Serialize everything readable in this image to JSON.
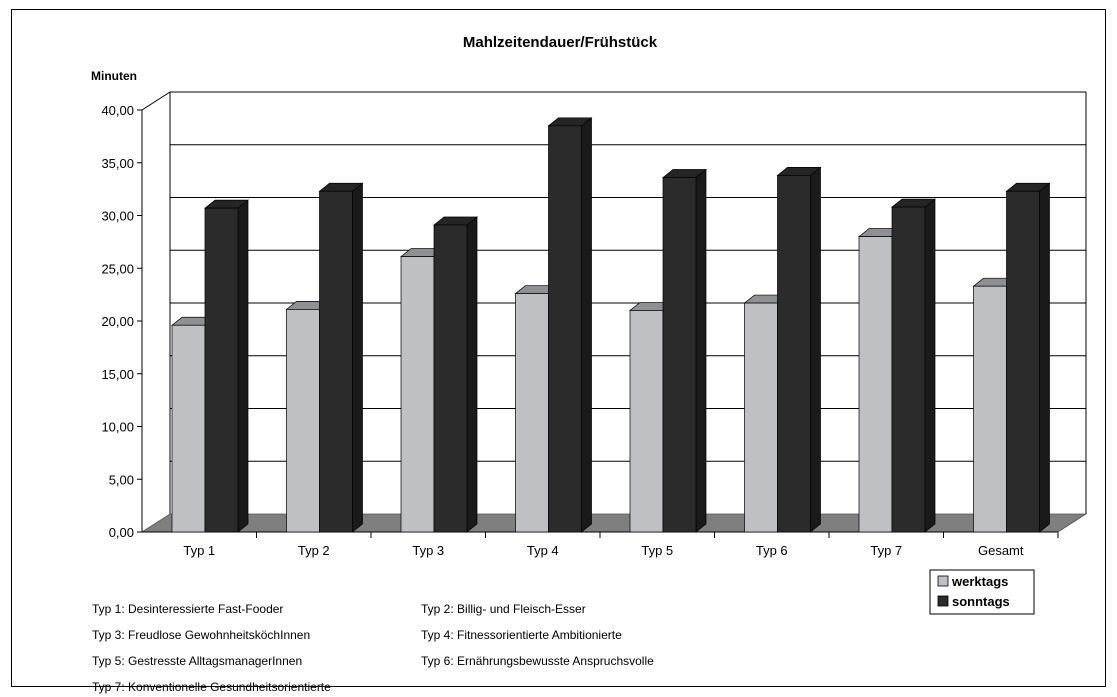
{
  "chart_data": {
    "type": "bar",
    "title": "Mahlzeitendauer/Frühstück",
    "ylabel": "Minuten",
    "xlabel": "",
    "categories": [
      "Typ 1",
      "Typ 2",
      "Typ 3",
      "Typ 4",
      "Typ 5",
      "Typ 6",
      "Typ 7",
      "Gesamt"
    ],
    "series": [
      {
        "name": "werktags",
        "values": [
          19.6,
          21.1,
          26.1,
          22.6,
          21.0,
          21.7,
          28.0,
          23.3
        ],
        "color": "#bfc0c4"
      },
      {
        "name": "sonntags",
        "values": [
          30.7,
          32.3,
          29.1,
          38.5,
          33.6,
          33.8,
          30.8,
          32.3
        ],
        "color": "#2b2b2b"
      }
    ],
    "ylim": [
      0,
      40
    ],
    "yticks": [
      "0,00",
      "5,00",
      "10,00",
      "15,00",
      "20,00",
      "25,00",
      "30,00",
      "35,00",
      "40,00"
    ],
    "grid": true,
    "legend_position": "bottom-right",
    "style": "3d-clustered-column"
  },
  "notes": [
    "Typ 1: Desinteressierte Fast-Fooder",
    "Typ 2: Billig- und Fleisch-Esser",
    "Typ 3: Freudlose GewohnheitsköchInnen",
    "Typ 4: Fitnessorientierte Ambitionierte",
    "Typ 5: Gestresste AlltagsmanagerInnen",
    "Typ 6: Ernährungsbewusste Anspruchsvolle",
    "Typ 7: Konventionelle Gesundheitsorientierte"
  ]
}
